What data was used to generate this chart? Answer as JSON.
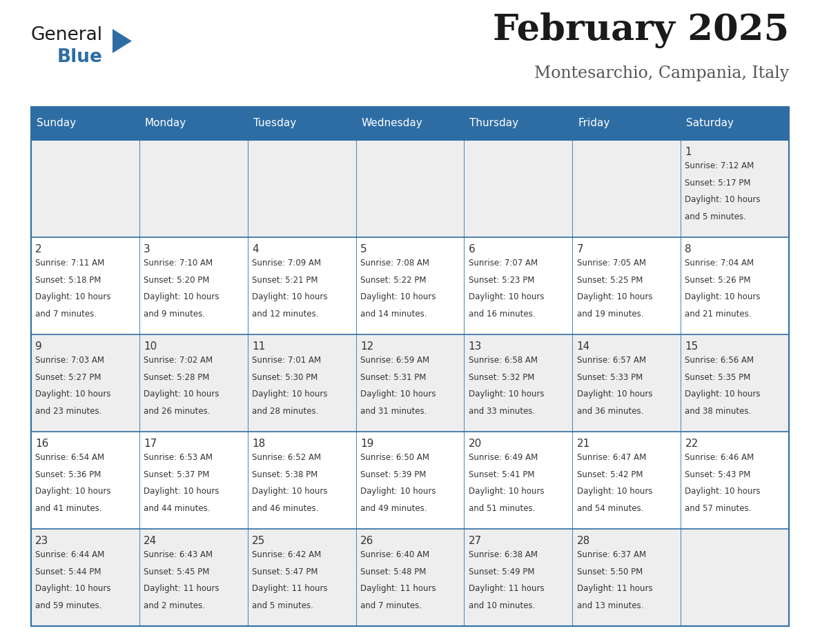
{
  "title": "February 2025",
  "subtitle": "Montesarchio, Campania, Italy",
  "header_bg_color": "#2E6DA4",
  "header_text_color": "#FFFFFF",
  "cell_bg_even": "#EEEEEE",
  "cell_bg_odd": "#FFFFFF",
  "border_color": "#2E6DA4",
  "text_color": "#333333",
  "day_headers": [
    "Sunday",
    "Monday",
    "Tuesday",
    "Wednesday",
    "Thursday",
    "Friday",
    "Saturday"
  ],
  "days": [
    {
      "day": 1,
      "col": 6,
      "row": 0,
      "sunrise": "7:12 AM",
      "sunset": "5:17 PM",
      "daylight": "10 hours and 5 minutes."
    },
    {
      "day": 2,
      "col": 0,
      "row": 1,
      "sunrise": "7:11 AM",
      "sunset": "5:18 PM",
      "daylight": "10 hours and 7 minutes."
    },
    {
      "day": 3,
      "col": 1,
      "row": 1,
      "sunrise": "7:10 AM",
      "sunset": "5:20 PM",
      "daylight": "10 hours and 9 minutes."
    },
    {
      "day": 4,
      "col": 2,
      "row": 1,
      "sunrise": "7:09 AM",
      "sunset": "5:21 PM",
      "daylight": "10 hours and 12 minutes."
    },
    {
      "day": 5,
      "col": 3,
      "row": 1,
      "sunrise": "7:08 AM",
      "sunset": "5:22 PM",
      "daylight": "10 hours and 14 minutes."
    },
    {
      "day": 6,
      "col": 4,
      "row": 1,
      "sunrise": "7:07 AM",
      "sunset": "5:23 PM",
      "daylight": "10 hours and 16 minutes."
    },
    {
      "day": 7,
      "col": 5,
      "row": 1,
      "sunrise": "7:05 AM",
      "sunset": "5:25 PM",
      "daylight": "10 hours and 19 minutes."
    },
    {
      "day": 8,
      "col": 6,
      "row": 1,
      "sunrise": "7:04 AM",
      "sunset": "5:26 PM",
      "daylight": "10 hours and 21 minutes."
    },
    {
      "day": 9,
      "col": 0,
      "row": 2,
      "sunrise": "7:03 AM",
      "sunset": "5:27 PM",
      "daylight": "10 hours and 23 minutes."
    },
    {
      "day": 10,
      "col": 1,
      "row": 2,
      "sunrise": "7:02 AM",
      "sunset": "5:28 PM",
      "daylight": "10 hours and 26 minutes."
    },
    {
      "day": 11,
      "col": 2,
      "row": 2,
      "sunrise": "7:01 AM",
      "sunset": "5:30 PM",
      "daylight": "10 hours and 28 minutes."
    },
    {
      "day": 12,
      "col": 3,
      "row": 2,
      "sunrise": "6:59 AM",
      "sunset": "5:31 PM",
      "daylight": "10 hours and 31 minutes."
    },
    {
      "day": 13,
      "col": 4,
      "row": 2,
      "sunrise": "6:58 AM",
      "sunset": "5:32 PM",
      "daylight": "10 hours and 33 minutes."
    },
    {
      "day": 14,
      "col": 5,
      "row": 2,
      "sunrise": "6:57 AM",
      "sunset": "5:33 PM",
      "daylight": "10 hours and 36 minutes."
    },
    {
      "day": 15,
      "col": 6,
      "row": 2,
      "sunrise": "6:56 AM",
      "sunset": "5:35 PM",
      "daylight": "10 hours and 38 minutes."
    },
    {
      "day": 16,
      "col": 0,
      "row": 3,
      "sunrise": "6:54 AM",
      "sunset": "5:36 PM",
      "daylight": "10 hours and 41 minutes."
    },
    {
      "day": 17,
      "col": 1,
      "row": 3,
      "sunrise": "6:53 AM",
      "sunset": "5:37 PM",
      "daylight": "10 hours and 44 minutes."
    },
    {
      "day": 18,
      "col": 2,
      "row": 3,
      "sunrise": "6:52 AM",
      "sunset": "5:38 PM",
      "daylight": "10 hours and 46 minutes."
    },
    {
      "day": 19,
      "col": 3,
      "row": 3,
      "sunrise": "6:50 AM",
      "sunset": "5:39 PM",
      "daylight": "10 hours and 49 minutes."
    },
    {
      "day": 20,
      "col": 4,
      "row": 3,
      "sunrise": "6:49 AM",
      "sunset": "5:41 PM",
      "daylight": "10 hours and 51 minutes."
    },
    {
      "day": 21,
      "col": 5,
      "row": 3,
      "sunrise": "6:47 AM",
      "sunset": "5:42 PM",
      "daylight": "10 hours and 54 minutes."
    },
    {
      "day": 22,
      "col": 6,
      "row": 3,
      "sunrise": "6:46 AM",
      "sunset": "5:43 PM",
      "daylight": "10 hours and 57 minutes."
    },
    {
      "day": 23,
      "col": 0,
      "row": 4,
      "sunrise": "6:44 AM",
      "sunset": "5:44 PM",
      "daylight": "10 hours and 59 minutes."
    },
    {
      "day": 24,
      "col": 1,
      "row": 4,
      "sunrise": "6:43 AM",
      "sunset": "5:45 PM",
      "daylight": "11 hours and 2 minutes."
    },
    {
      "day": 25,
      "col": 2,
      "row": 4,
      "sunrise": "6:42 AM",
      "sunset": "5:47 PM",
      "daylight": "11 hours and 5 minutes."
    },
    {
      "day": 26,
      "col": 3,
      "row": 4,
      "sunrise": "6:40 AM",
      "sunset": "5:48 PM",
      "daylight": "11 hours and 7 minutes."
    },
    {
      "day": 27,
      "col": 4,
      "row": 4,
      "sunrise": "6:38 AM",
      "sunset": "5:49 PM",
      "daylight": "11 hours and 10 minutes."
    },
    {
      "day": 28,
      "col": 5,
      "row": 4,
      "sunrise": "6:37 AM",
      "sunset": "5:50 PM",
      "daylight": "11 hours and 13 minutes."
    }
  ],
  "num_rows": 5,
  "num_cols": 7,
  "title_fontsize": 38,
  "subtitle_fontsize": 17,
  "header_fontsize": 11,
  "day_num_fontsize": 11,
  "cell_text_fontsize": 8.5
}
